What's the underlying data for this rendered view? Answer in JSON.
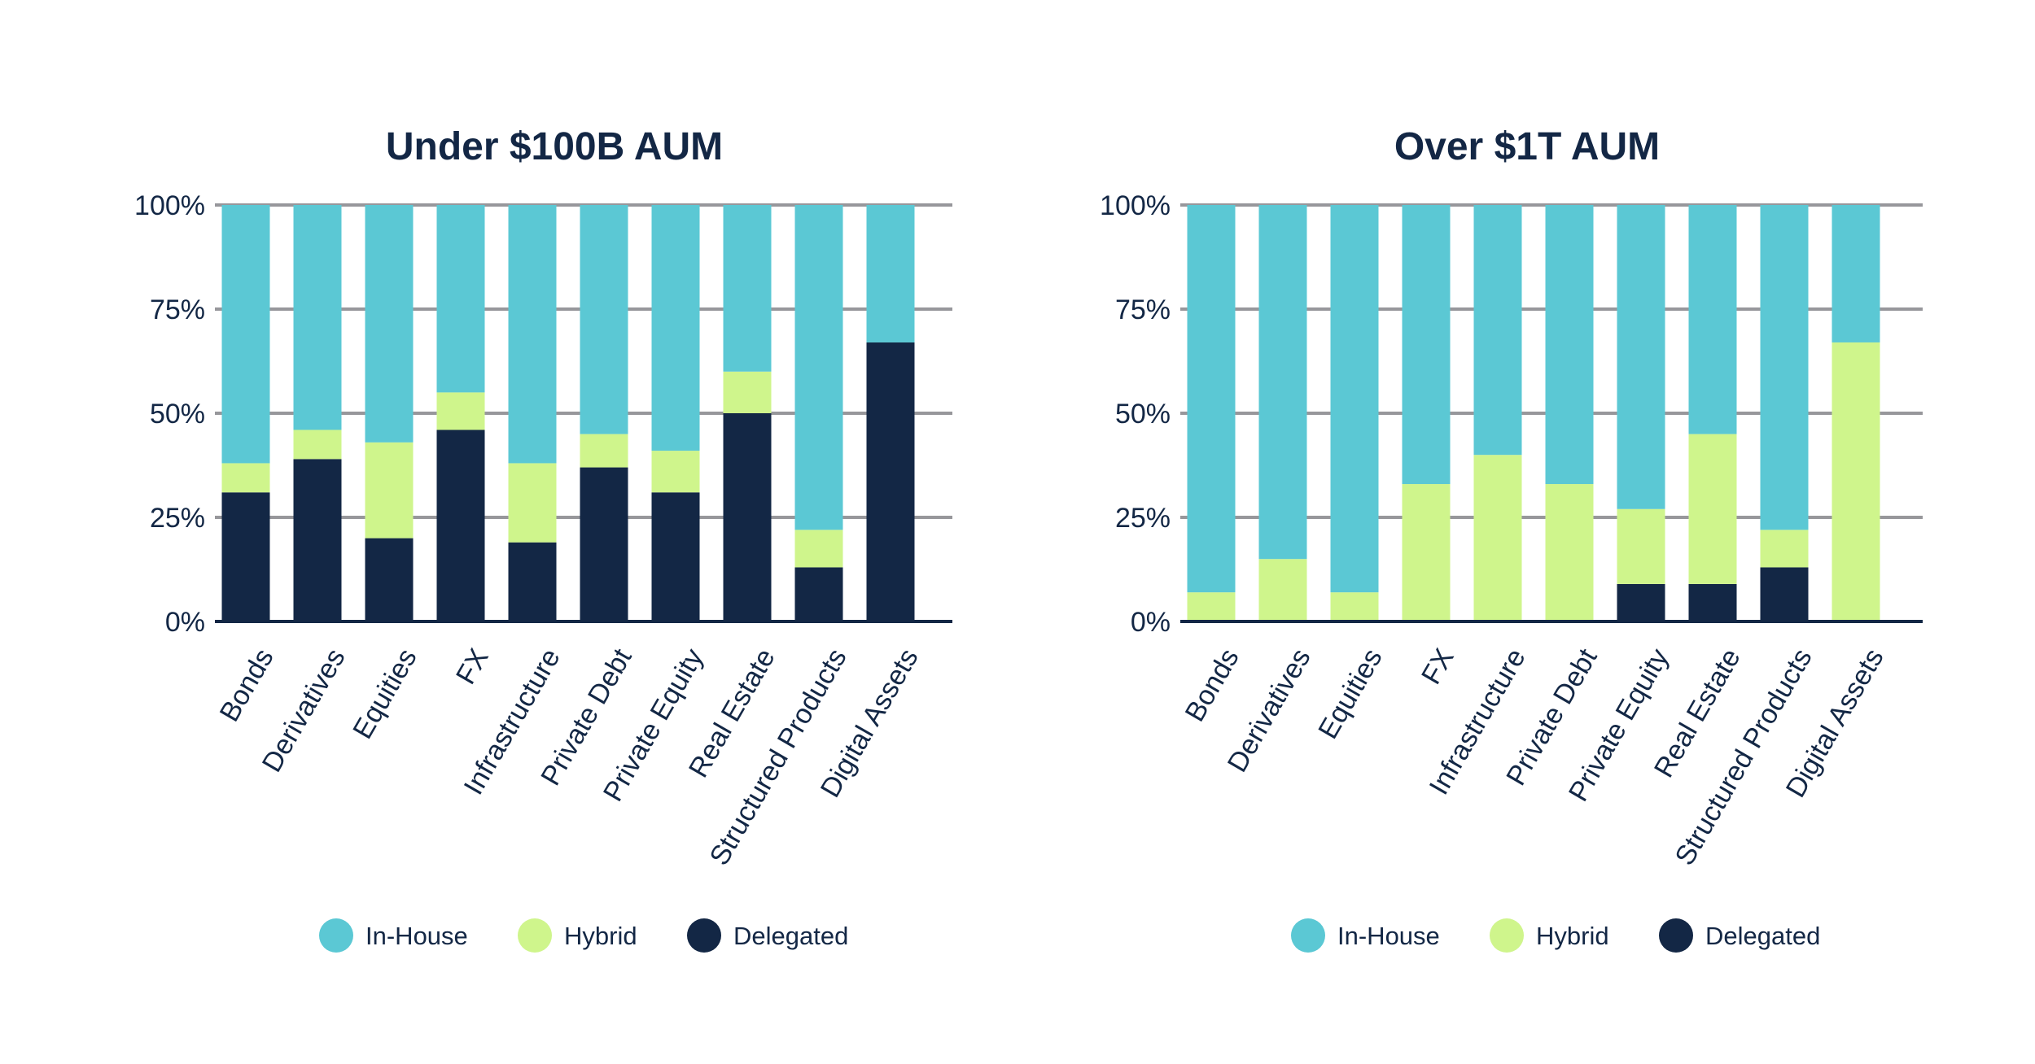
{
  "colors": {
    "In-House": "#5BC8D4",
    "Hybrid": "#CFF58C",
    "Delegated": "#132745",
    "grid": "#97979b",
    "text": "#132745"
  },
  "chart_data": [
    {
      "type": "bar",
      "stacked": true,
      "title": "Under $100B AUM",
      "categories": [
        "Bonds",
        "Derivatives",
        "Equities",
        "FX",
        "Infrastructure",
        "Private Debt",
        "Private Equity",
        "Real Estate",
        "Structured Products",
        "Digital Assets"
      ],
      "series": [
        {
          "name": "Delegated",
          "values": [
            31,
            39,
            20,
            46,
            19,
            37,
            31,
            50,
            13,
            67
          ]
        },
        {
          "name": "Hybrid",
          "values": [
            7,
            7,
            23,
            9,
            19,
            8,
            10,
            10,
            9,
            0
          ]
        },
        {
          "name": "In-House",
          "values": [
            62,
            54,
            57,
            45,
            62,
            55,
            59,
            40,
            78,
            33
          ]
        }
      ],
      "ylim": [
        0,
        100
      ],
      "yticks": [
        "0%",
        "25%",
        "50%",
        "75%",
        "100%"
      ],
      "grid": true,
      "legend": [
        "In-House",
        "Hybrid",
        "Delegated"
      ],
      "legend_position": "bottom"
    },
    {
      "type": "bar",
      "stacked": true,
      "title": "Over $1T AUM",
      "categories": [
        "Bonds",
        "Derivatives",
        "Equities",
        "FX",
        "Infrastructure",
        "Private Debt",
        "Private Equity",
        "Real Estate",
        "Structured Products",
        "Digital Assets"
      ],
      "series": [
        {
          "name": "Delegated",
          "values": [
            0,
            0,
            0,
            0,
            0,
            0,
            9,
            9,
            13,
            0
          ]
        },
        {
          "name": "Hybrid",
          "values": [
            7,
            15,
            7,
            33,
            40,
            33,
            18,
            36,
            9,
            67
          ]
        },
        {
          "name": "In-House",
          "values": [
            93,
            85,
            93,
            67,
            60,
            67,
            73,
            55,
            78,
            33
          ]
        }
      ],
      "ylim": [
        0,
        100
      ],
      "yticks": [
        "0%",
        "25%",
        "50%",
        "75%",
        "100%"
      ],
      "grid": true,
      "legend": [
        "In-House",
        "Hybrid",
        "Delegated"
      ],
      "legend_position": "bottom"
    }
  ]
}
